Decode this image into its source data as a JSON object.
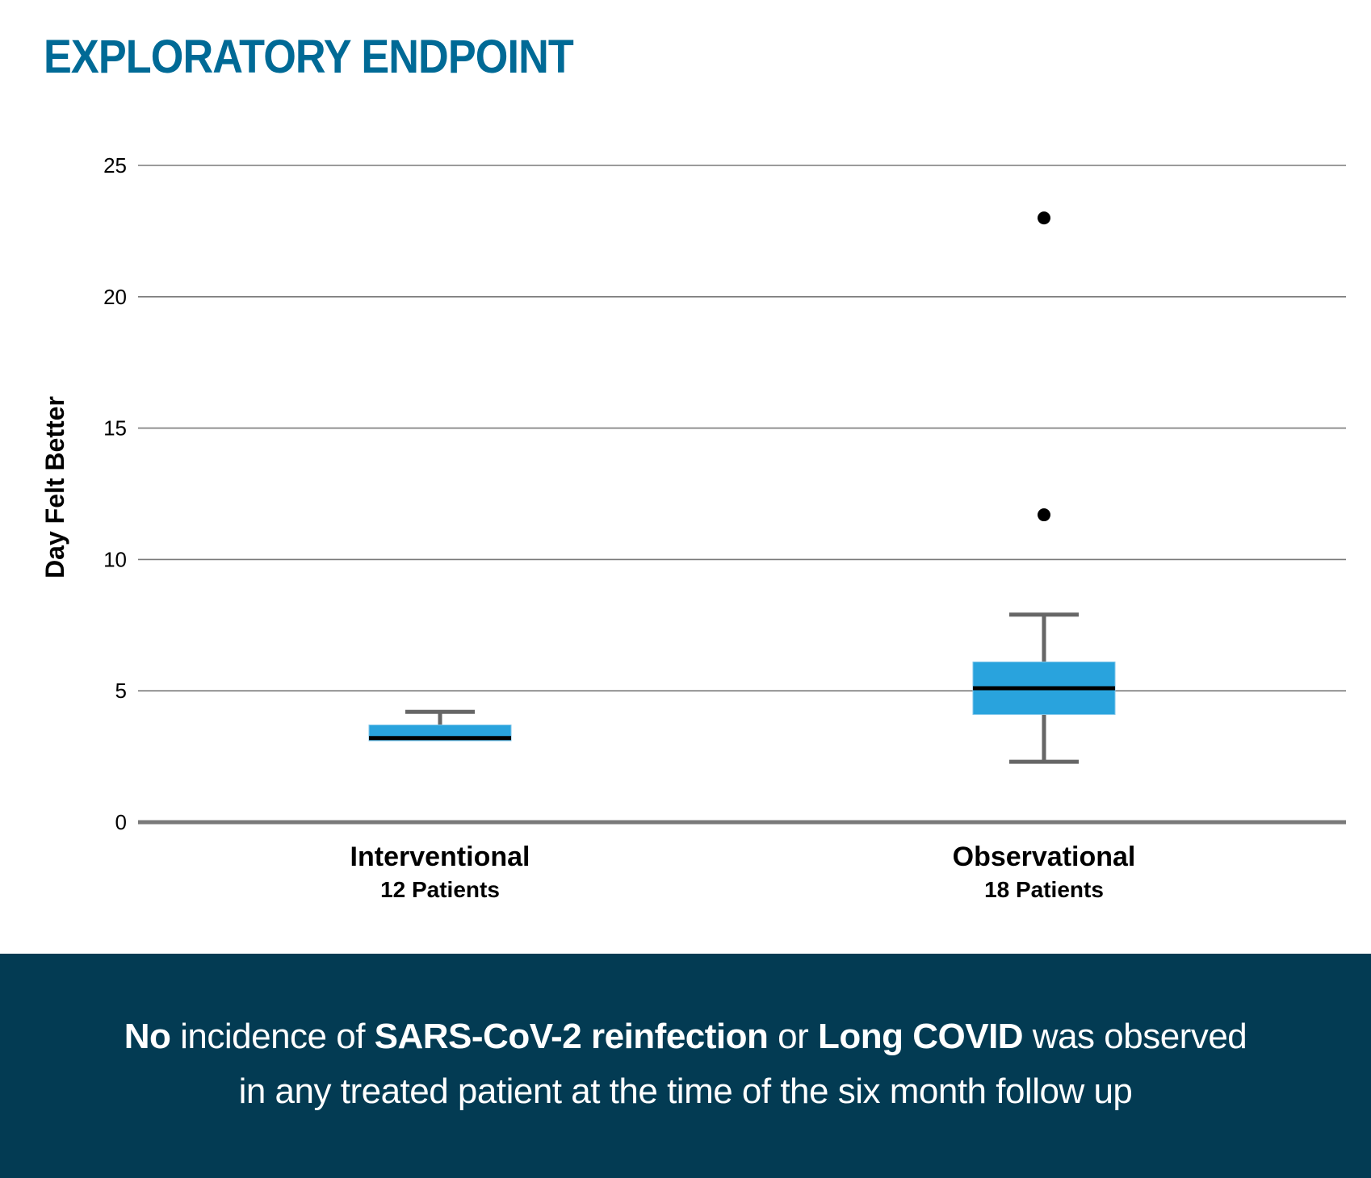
{
  "page": {
    "title": "EXPLORATORY ENDPOINT",
    "footer": {
      "segments": [
        {
          "text": "No",
          "bold": true
        },
        {
          "text": " incidence of ",
          "bold": false
        },
        {
          "text": "SARS-CoV-2 reinfection",
          "bold": true
        },
        {
          "text": " or ",
          "bold": false
        },
        {
          "text": "Long COVID",
          "bold": true
        },
        {
          "text": " was observed",
          "bold": false
        }
      ],
      "line2": "in any treated patient at the time of the six month follow up"
    },
    "colors": {
      "title": "#006a96",
      "box_fill": "#29a3dd",
      "median": "#000000",
      "whisker": "#666666",
      "grid": "#7a7a7a",
      "banner_bg": "#033b53",
      "banner_text": "#ffffff",
      "outlier": "#000000"
    }
  },
  "chart_data": {
    "type": "box",
    "title": "EXPLORATORY ENDPOINT",
    "xlabel": "",
    "ylabel": "Day Felt Better",
    "ylim": [
      0,
      25
    ],
    "yticks": [
      0,
      5,
      10,
      15,
      20,
      25
    ],
    "grid": true,
    "legend": "none",
    "categories": [
      "Interventional",
      "Observational"
    ],
    "category_sublabels": [
      "12 Patients",
      "18 Patients"
    ],
    "series": [
      {
        "name": "Interventional",
        "n": 12,
        "whisker_low": 3.1,
        "q1": 3.1,
        "median": 3.2,
        "q3": 3.7,
        "whisker_high": 4.2,
        "outliers": []
      },
      {
        "name": "Observational",
        "n": 18,
        "whisker_low": 2.3,
        "q1": 4.1,
        "median": 5.1,
        "q3": 6.1,
        "whisker_high": 7.9,
        "outliers": [
          11.7,
          23.0
        ]
      }
    ]
  }
}
